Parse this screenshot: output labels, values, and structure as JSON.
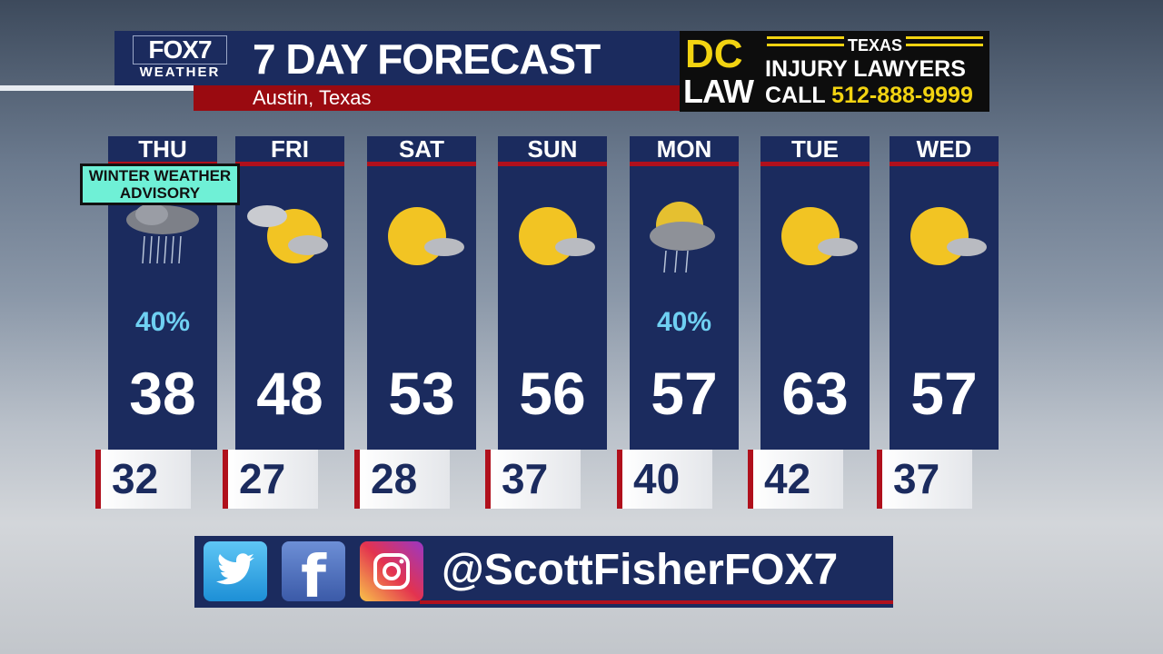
{
  "header": {
    "logo_top": "FOX7",
    "logo_bottom": "WEATHER",
    "title": "7 DAY FORECAST",
    "location": "Austin, Texas"
  },
  "ad": {
    "brand_top": "DC",
    "brand_bottom": "LAW",
    "state": "TEXAS",
    "tagline": "INJURY LAWYERS",
    "call": "CALL",
    "phone": "512-888-9999"
  },
  "advisory": {
    "line1": "WINTER WEATHER",
    "line2": "ADVISORY"
  },
  "days": [
    {
      "day": "THU",
      "icon": "rain-cloud-icon",
      "pop": "40%",
      "high": "38",
      "low": "32"
    },
    {
      "day": "FRI",
      "icon": "partly-cloudy-icon",
      "pop": "",
      "high": "48",
      "low": "27"
    },
    {
      "day": "SAT",
      "icon": "mostly-sunny-icon",
      "pop": "",
      "high": "53",
      "low": "28"
    },
    {
      "day": "SUN",
      "icon": "mostly-sunny-icon",
      "pop": "",
      "high": "56",
      "low": "37"
    },
    {
      "day": "MON",
      "icon": "sun-cloud-rain-icon",
      "pop": "40%",
      "high": "57",
      "low": "40"
    },
    {
      "day": "TUE",
      "icon": "mostly-sunny-icon",
      "pop": "",
      "high": "63",
      "low": "42"
    },
    {
      "day": "WED",
      "icon": "mostly-sunny-icon",
      "pop": "",
      "high": "57",
      "low": "37"
    }
  ],
  "social": {
    "handle": "@ScottFisherFOX7",
    "icons": [
      "twitter-icon",
      "facebook-icon",
      "instagram-icon"
    ]
  },
  "colors": {
    "navy": "#1b2b5e",
    "red": "#b0101c",
    "pop": "#6fd0f2",
    "advisory": "#6ff0d6",
    "ad_yellow": "#f2d311"
  }
}
